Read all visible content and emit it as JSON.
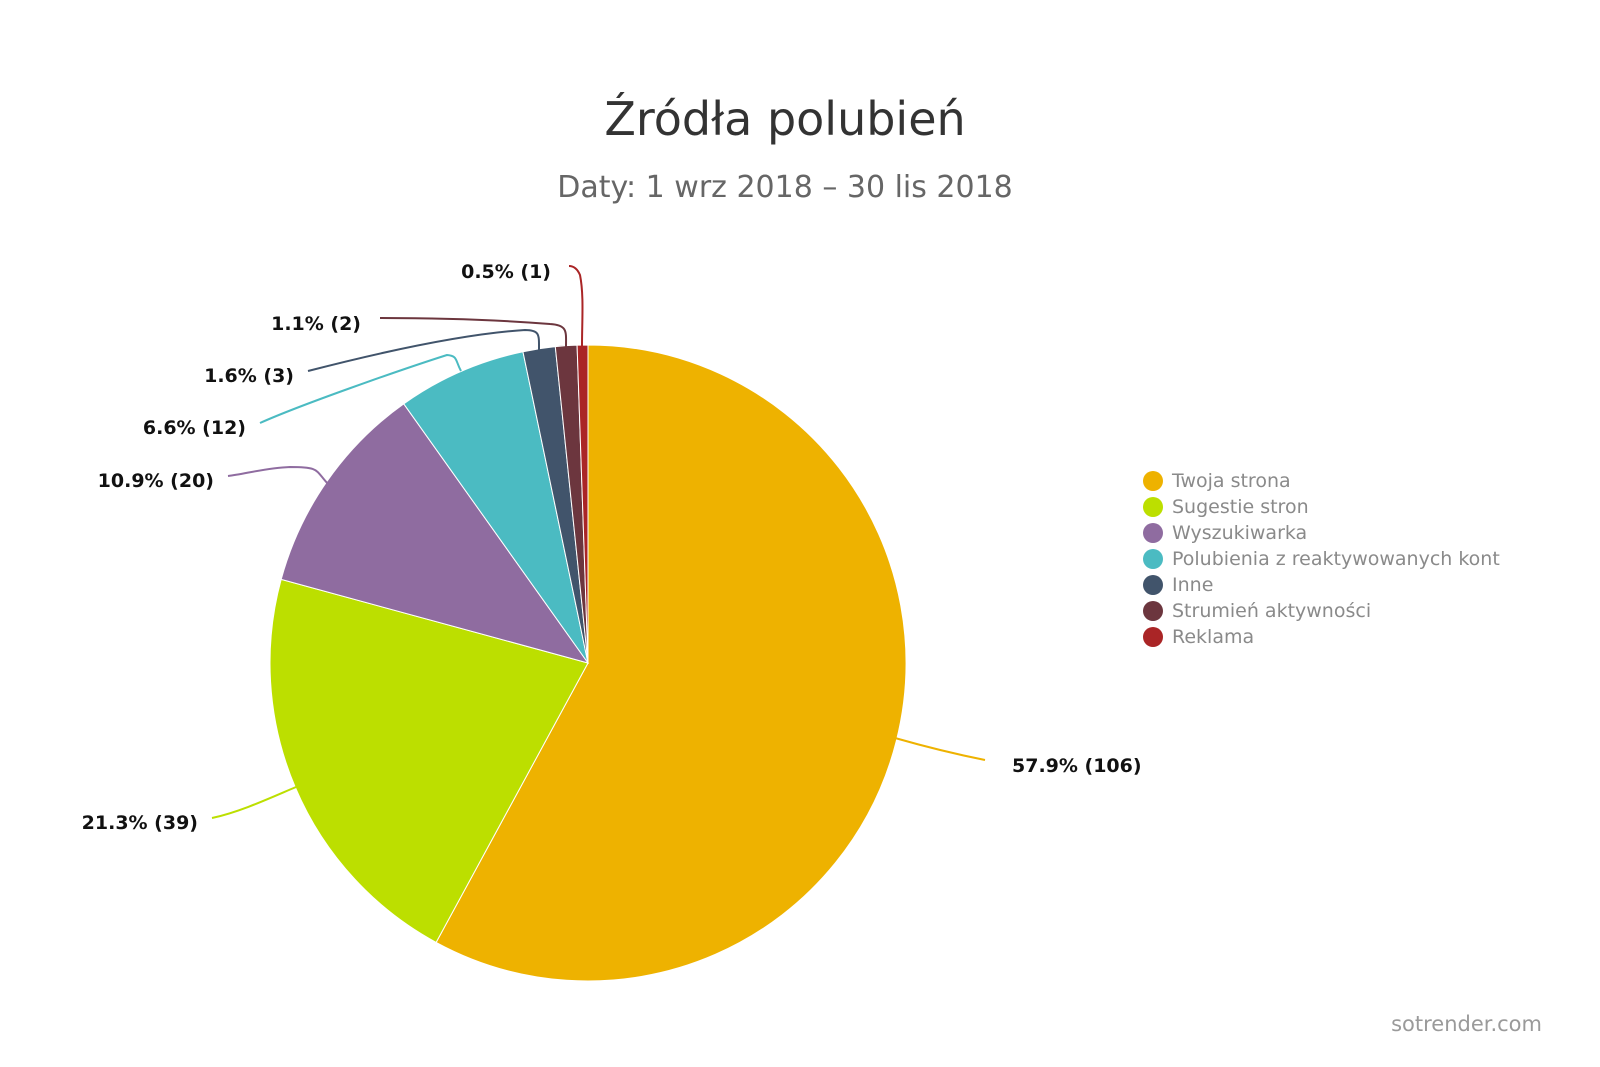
{
  "title": "Źródła polubień",
  "subtitle": "Daty: 1 wrz 2018 – 30 lis 2018",
  "credit": "sotrender.com",
  "chart_data": {
    "type": "pie",
    "title": "Źródła polubień",
    "subtitle": "Daty: 1 wrz 2018 – 30 lis 2018",
    "legend_position": "right",
    "slices": [
      {
        "name": "Twoja strona",
        "value": 106,
        "percent_label": "57.9% (106)",
        "color": "#eeb200"
      },
      {
        "name": "Sugestie stron",
        "value": 39,
        "percent_label": "21.3% (39)",
        "color": "#bcdf00"
      },
      {
        "name": "Wyszukiwarka",
        "value": 20,
        "percent_label": "10.9% (20)",
        "color": "#8f6ca0"
      },
      {
        "name": "Polubienia z reaktywowanych kont",
        "value": 12,
        "percent_label": "6.6% (12)",
        "color": "#4bbbc2"
      },
      {
        "name": "Inne",
        "value": 3,
        "percent_label": "1.6% (3)",
        "color": "#41546b"
      },
      {
        "name": "Strumień aktywności",
        "value": 2,
        "percent_label": "1.1% (2)",
        "color": "#6c363e"
      },
      {
        "name": "Reklama",
        "value": 1,
        "percent_label": "0.5% (1)",
        "color": "#aa2526"
      }
    ]
  }
}
